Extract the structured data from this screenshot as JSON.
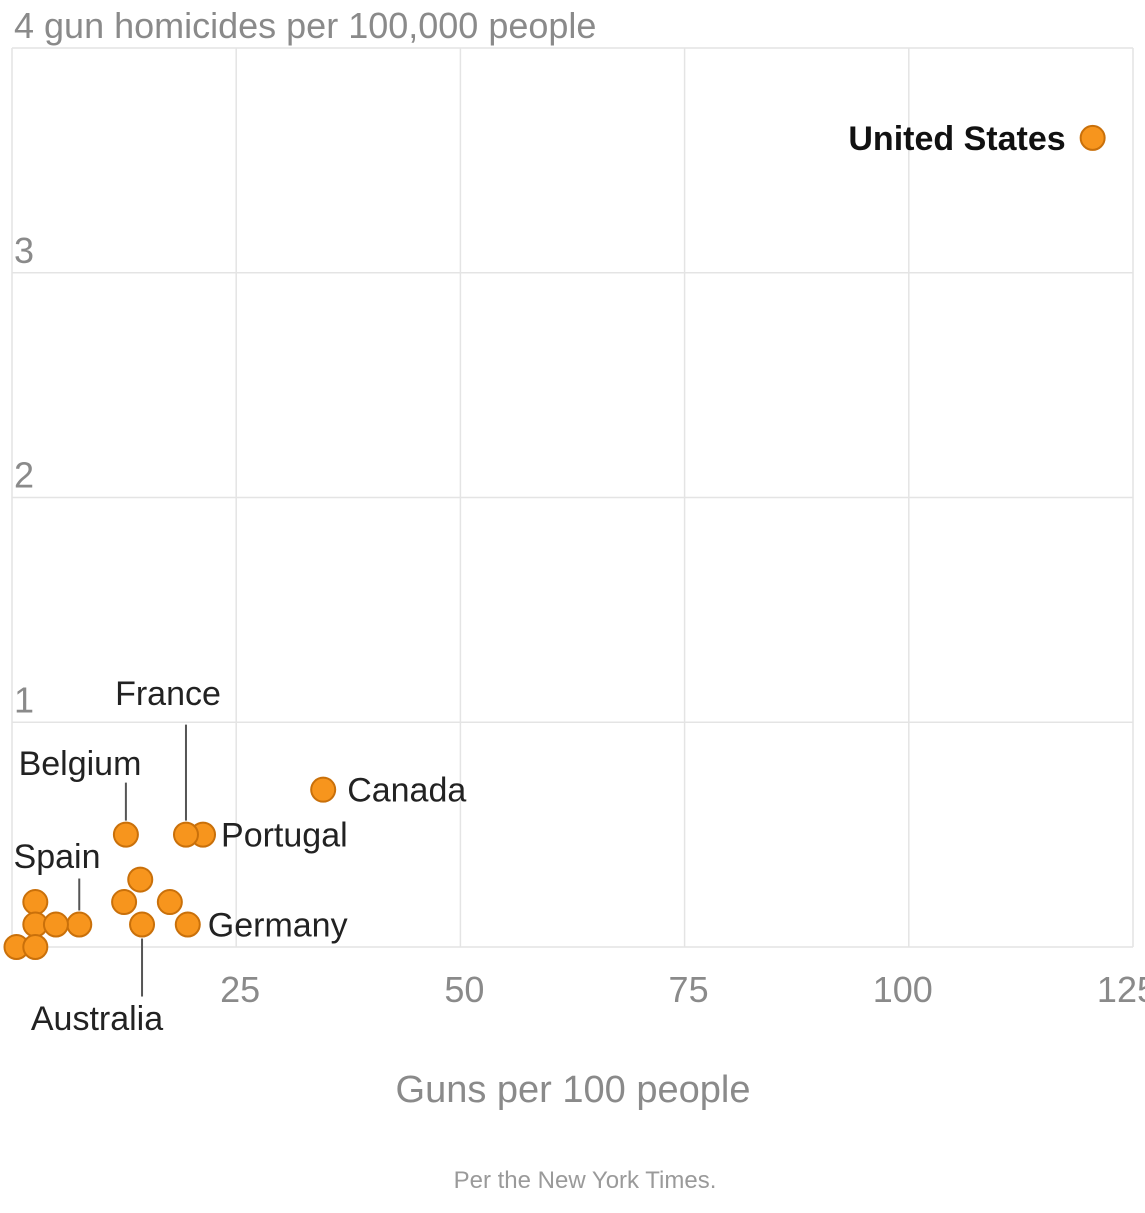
{
  "chart_data": {
    "type": "scatter",
    "title": "",
    "ylabel": "gun homicides per 100,000 people",
    "xlabel": "Guns per 100 people",
    "xlim": [
      0,
      125
    ],
    "ylim": [
      0,
      4
    ],
    "x_ticks": [
      "25",
      "50",
      "75",
      "100",
      "125"
    ],
    "y_ticks": [
      "1",
      "2",
      "3",
      "4"
    ],
    "y_top_label": "4 gun homicides per 100,000 people",
    "grid": true,
    "point_color": "#f7951d",
    "points": [
      {
        "name": "United States",
        "x": 120.5,
        "y": 3.6,
        "label": "United States"
      },
      {
        "name": "Canada",
        "x": 34.7,
        "y": 0.7,
        "label": "Canada"
      },
      {
        "name": "Portugal",
        "x": 21.3,
        "y": 0.5,
        "label": "Portugal"
      },
      {
        "name": "France",
        "x": 19.4,
        "y": 0.5,
        "label": "France"
      },
      {
        "name": "Belgium",
        "x": 12.7,
        "y": 0.5,
        "label": "Belgium"
      },
      {
        "name": "Germany",
        "x": 19.6,
        "y": 0.1,
        "label": "Germany"
      },
      {
        "name": "Australia",
        "x": 14.5,
        "y": 0.1,
        "label": "Australia"
      },
      {
        "name": "Spain",
        "x": 7.5,
        "y": 0.1,
        "label": "Spain"
      },
      {
        "name": "",
        "x": 14.3,
        "y": 0.3
      },
      {
        "name": "",
        "x": 12.5,
        "y": 0.2
      },
      {
        "name": "",
        "x": 17.6,
        "y": 0.2
      },
      {
        "name": "",
        "x": 2.6,
        "y": 0.2
      },
      {
        "name": "",
        "x": 2.6,
        "y": 0.1
      },
      {
        "name": "",
        "x": 4.9,
        "y": 0.1
      },
      {
        "name": "",
        "x": 0.5,
        "y": 0.0
      },
      {
        "name": "",
        "x": 2.6,
        "y": 0.0
      }
    ]
  },
  "source_note": "Per the New York Times."
}
